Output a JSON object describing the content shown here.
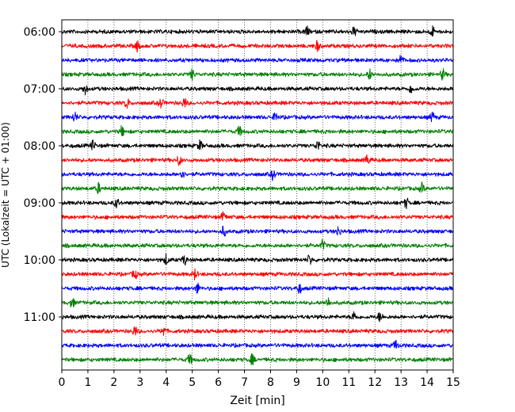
{
  "chart_data": {
    "type": "line",
    "title": "",
    "xlabel": "Zeit  [min]",
    "ylabel": "UTC (Lokalzeit = UTC + 01:00)",
    "xlim": [
      0,
      15
    ],
    "x_ticks": [
      "0",
      "1",
      "2",
      "3",
      "4",
      "5",
      "6",
      "7",
      "8",
      "9",
      "10",
      "11",
      "12",
      "13",
      "14",
      "15"
    ],
    "y_tick_labels": [
      "06:00",
      "07:00",
      "08:00",
      "09:00",
      "10:00",
      "11:00"
    ],
    "y_tick_trace_index": [
      0,
      4,
      8,
      12,
      16,
      20
    ],
    "trace_count": 24,
    "trace_interval_min": 15,
    "start_time": "06:00",
    "grid": "vertical-dotted",
    "color_cycle": [
      "#000000",
      "#ff0000",
      "#0000ff",
      "#008000"
    ],
    "series": [
      {
        "trace": 0,
        "events": [
          9.4,
          11.2,
          14.2
        ]
      },
      {
        "trace": 1,
        "events": [
          2.9,
          9.8
        ]
      },
      {
        "trace": 2,
        "events": [
          13.0
        ]
      },
      {
        "trace": 3,
        "events": [
          5.0,
          11.8,
          14.6
        ]
      },
      {
        "trace": 4,
        "events": [
          0.9,
          13.4
        ]
      },
      {
        "trace": 5,
        "events": [
          2.5,
          3.8,
          4.7
        ]
      },
      {
        "trace": 6,
        "events": [
          0.5,
          8.2,
          14.2
        ]
      },
      {
        "trace": 7,
        "events": [
          2.3,
          6.8
        ]
      },
      {
        "trace": 8,
        "events": [
          1.2,
          5.3,
          9.8
        ]
      },
      {
        "trace": 9,
        "events": [
          4.5,
          11.7
        ]
      },
      {
        "trace": 10,
        "events": [
          4.6,
          8.1
        ]
      },
      {
        "trace": 11,
        "events": [
          1.4,
          13.8
        ]
      },
      {
        "trace": 12,
        "events": [
          2.1,
          13.2
        ]
      },
      {
        "trace": 13,
        "events": [
          6.2
        ]
      },
      {
        "trace": 14,
        "events": [
          6.2,
          10.6
        ]
      },
      {
        "trace": 15,
        "events": [
          10.0
        ]
      },
      {
        "trace": 16,
        "events": [
          4.0,
          4.7,
          9.5
        ]
      },
      {
        "trace": 17,
        "events": [
          2.8,
          5.1
        ]
      },
      {
        "trace": 18,
        "events": [
          5.2,
          9.1
        ]
      },
      {
        "trace": 19,
        "events": [
          0.4,
          10.2
        ]
      },
      {
        "trace": 20,
        "events": [
          11.2,
          12.2
        ]
      },
      {
        "trace": 21,
        "events": [
          2.8,
          3.9
        ]
      },
      {
        "trace": 22,
        "events": [
          12.8
        ]
      },
      {
        "trace": 23,
        "events": [
          4.9,
          7.3
        ]
      }
    ]
  }
}
